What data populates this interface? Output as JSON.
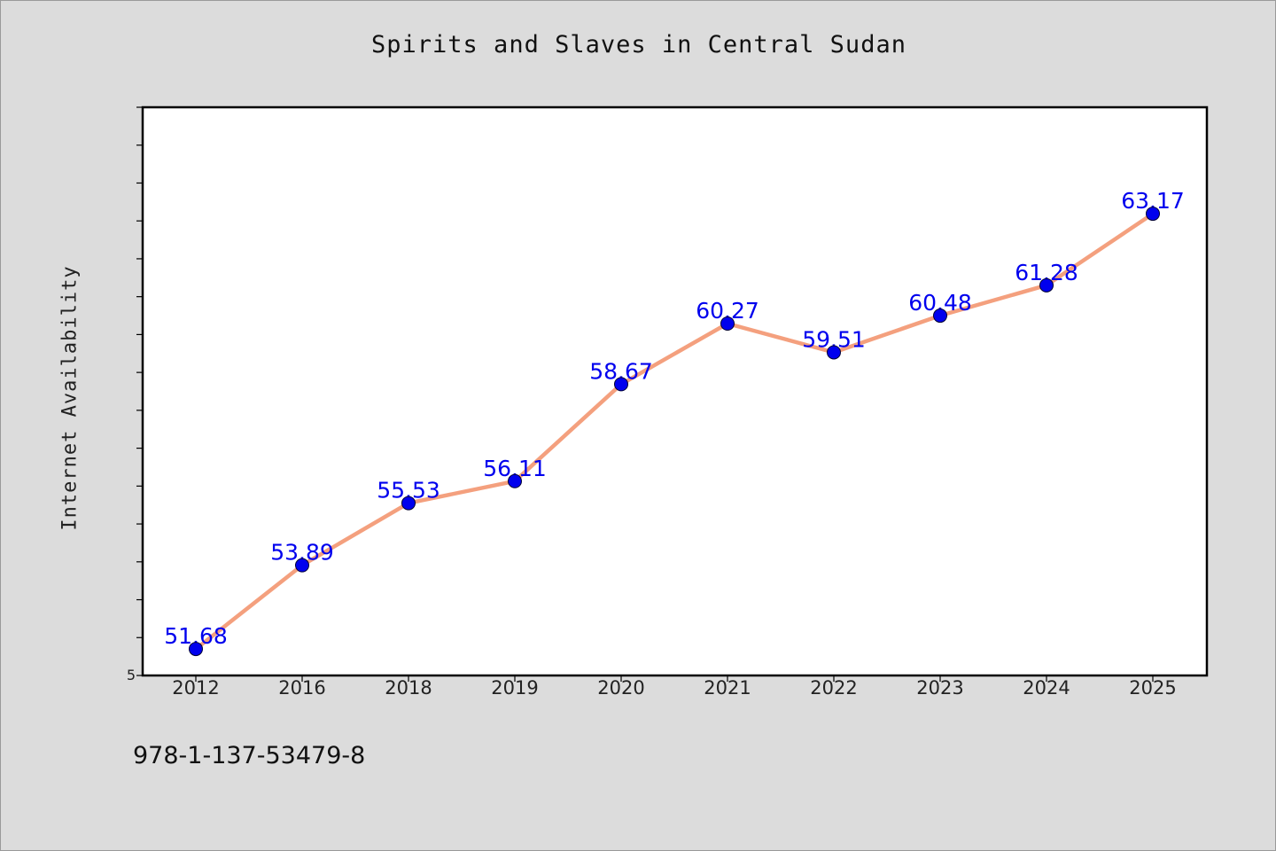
{
  "chart_data": {
    "type": "line",
    "title": "Spirits and Slaves in Central Sudan",
    "ylabel": "Internet Availability",
    "xlabel": "",
    "categories": [
      "2012",
      "2016",
      "2018",
      "2019",
      "2020",
      "2021",
      "2022",
      "2023",
      "2024",
      "2025"
    ],
    "values": [
      51.68,
      53.89,
      55.53,
      56.11,
      58.67,
      60.27,
      59.51,
      60.48,
      61.28,
      63.17
    ],
    "data_labels": [
      "51.68",
      "53.89",
      "55.53",
      "56.11",
      "58.67",
      "60.27",
      "59.51",
      "60.48",
      "61.28",
      "63.17"
    ],
    "ylim": [
      50.98,
      65.98
    ],
    "ytick_label_min": "5",
    "grid": false,
    "legend": "none",
    "colors": {
      "line": "#f4a07e",
      "marker": "#0000ee",
      "label": "#0000ee",
      "background": "#dcdcdc",
      "plot_background": "#ffffff"
    }
  },
  "footer": {
    "isbn": "978-1-137-53479-8"
  }
}
